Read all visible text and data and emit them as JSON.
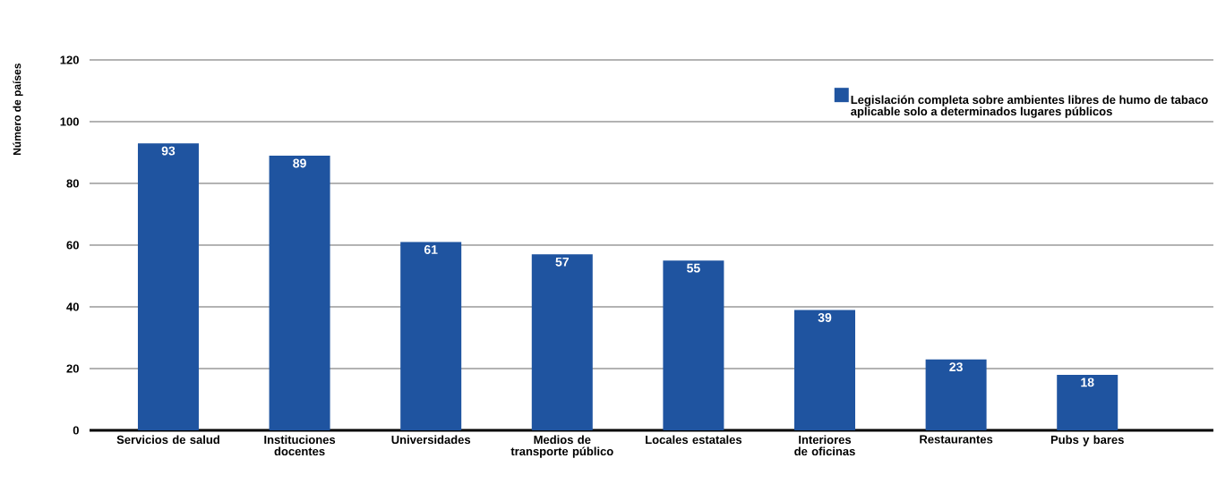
{
  "chart_data": {
    "type": "bar",
    "ylabel": "Número de países",
    "categories": [
      "Servicios de salud",
      "Instituciones docentes",
      "Universidades",
      "Medios de transporte público",
      "Locales estatales",
      "Interiores de oficinas",
      "Restaurantes",
      "Pubs y bares"
    ],
    "series": [
      {
        "name": "Legislación completa sobre ambientes libres de humo de tabaco aplicable solo a determinados lugares públicos",
        "color": "#1f54a0",
        "values": [
          93,
          89,
          61,
          57,
          55,
          39,
          23,
          18
        ]
      }
    ],
    "ylim": [
      0,
      120
    ],
    "yticks": [
      0,
      20,
      40,
      60,
      80,
      100,
      120
    ],
    "grid": "y",
    "legend": "top right",
    "data_labels": true
  }
}
